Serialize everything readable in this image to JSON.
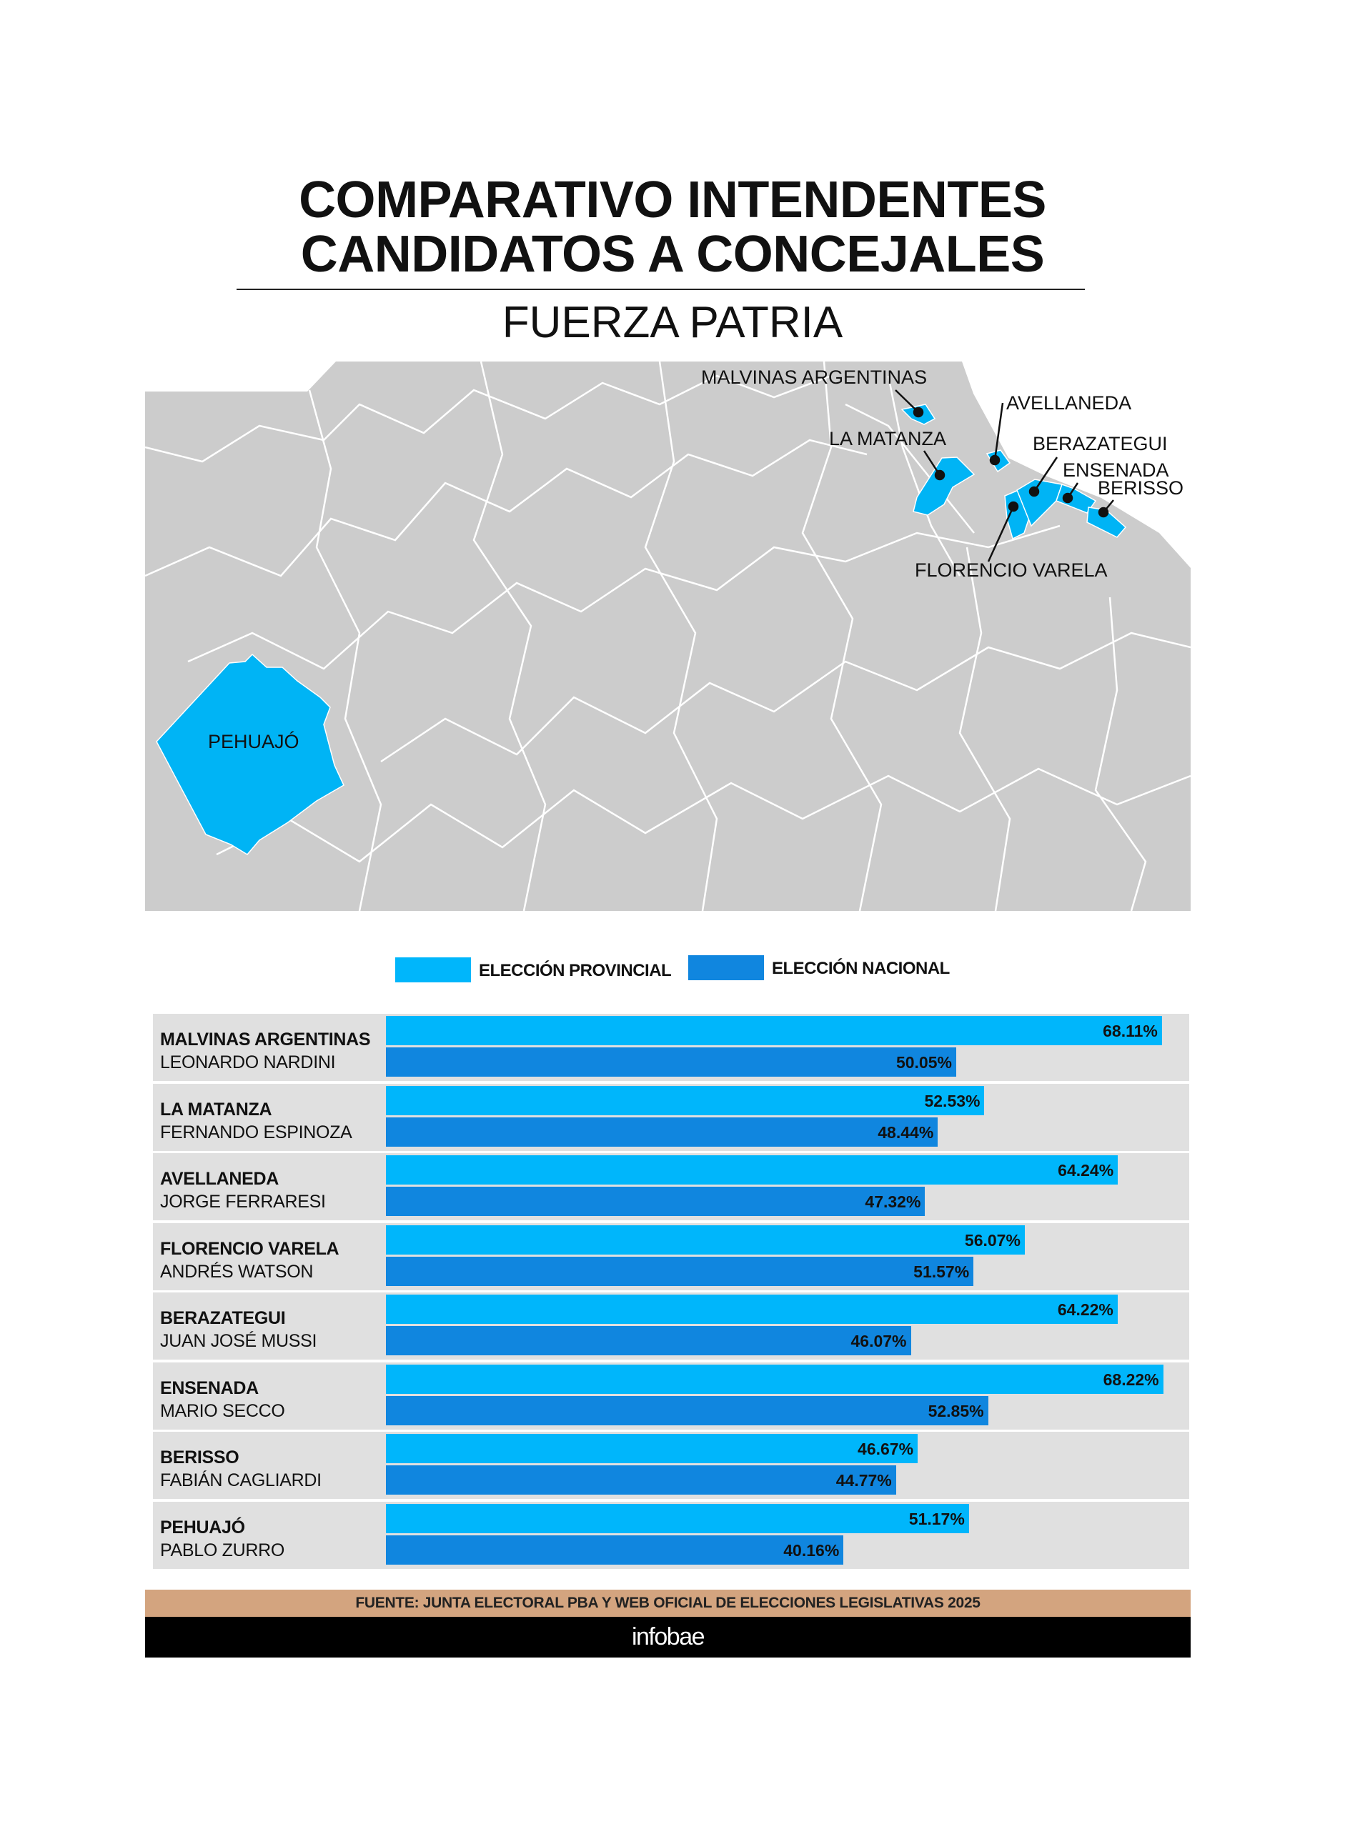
{
  "title_lines": [
    "COMPARATIVO INTENDENTES",
    "CANDIDATOS A CONCEJALES"
  ],
  "subtitle": "FUERZA PATRIA",
  "map": {
    "labels": {
      "malvinas": "MALVINAS ARGENTINAS",
      "avellaneda": "AVELLANEDA",
      "matanza": "LA MATANZA",
      "berazategui": "BERAZATEGUI",
      "ensenada": "ENSENADA",
      "berisso": "BERISSO",
      "varela": "FLORENCIO VARELA",
      "pehuajo": "PEHUAJÓ"
    },
    "colors": {
      "land": "#cccccc",
      "highlight": "#00b4f5",
      "border": "#ffffff"
    }
  },
  "chart_data": {
    "type": "bar",
    "orientation": "horizontal",
    "legend": {
      "placement": "top",
      "items": [
        "ELECCIÓN PROVINCIAL",
        "ELECCIÓN NACIONAL"
      ]
    },
    "categories": [
      {
        "municipio": "MALVINAS ARGENTINAS",
        "candidato": "LEONARDO NARDINI"
      },
      {
        "municipio": "LA MATANZA",
        "candidato": "FERNANDO ESPINOZA"
      },
      {
        "municipio": "AVELLANEDA",
        "candidato": "JORGE FERRARESI"
      },
      {
        "municipio": "FLORENCIO VARELA",
        "candidato": "ANDRÉS WATSON"
      },
      {
        "municipio": "BERAZATEGUI",
        "candidato": "JUAN JOSÉ MUSSI"
      },
      {
        "municipio": "ENSENADA",
        "candidato": "MARIO SECCO"
      },
      {
        "municipio": "BERISSO",
        "candidato": "FABIÁN CAGLIARDI"
      },
      {
        "municipio": "PEHUAJÓ",
        "candidato": "PABLO ZURRO"
      }
    ],
    "series": [
      {
        "name": "ELECCIÓN PROVINCIAL",
        "color": "#00b6fb",
        "values": [
          68.11,
          52.53,
          64.24,
          56.07,
          64.22,
          68.22,
          46.67,
          51.17
        ],
        "labels": [
          "68.11%",
          "52.53%",
          "64.24%",
          "56.07%",
          "64.22%",
          "68.22%",
          "46.67%",
          "51.17%"
        ]
      },
      {
        "name": "ELECCIÓN NACIONAL",
        "color": "#1086df",
        "values": [
          50.05,
          48.44,
          47.32,
          51.57,
          46.07,
          52.85,
          44.77,
          40.16
        ],
        "labels": [
          "50.05%",
          "48.44%",
          "47.32%",
          "51.57%",
          "46.07%",
          "52.85%",
          "44.77%",
          "40.16%"
        ]
      }
    ],
    "unit": "%",
    "xlim": [
      0,
      70.5
    ],
    "grid": false
  },
  "source": "FUENTE: JUNTA ELECTORAL PBA Y WEB OFICIAL DE ELECCIONES LEGISLATIVAS 2025",
  "brand": "infobae"
}
